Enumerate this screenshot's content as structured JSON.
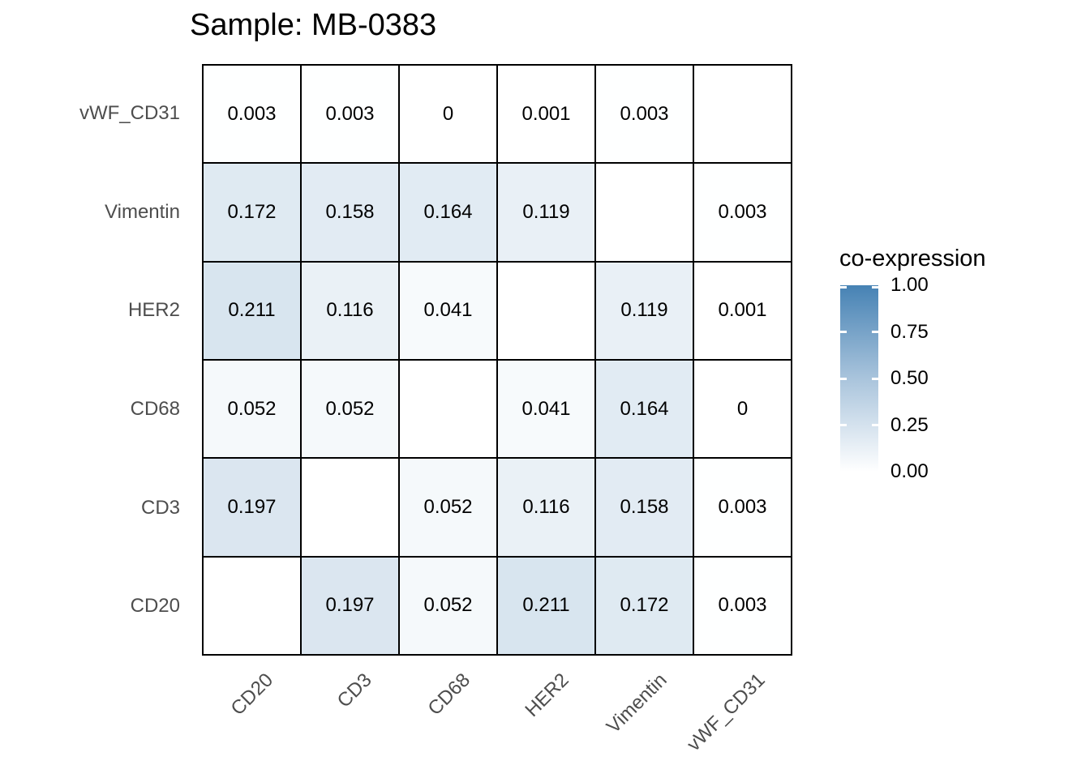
{
  "title": "Sample: MB-0383",
  "legend": {
    "title": "co-expression",
    "tick_labels": [
      "1.00",
      "0.75",
      "0.50",
      "0.25",
      "0.00"
    ],
    "tick_values": [
      1.0,
      0.75,
      0.5,
      0.25,
      0.0
    ],
    "gradient_high_color": "#4682b4",
    "gradient_low_color": "#ffffff"
  },
  "chart_data": {
    "type": "heatmap",
    "title": "Sample: MB-0383",
    "legend_title": "co-expression",
    "x_categories": [
      "CD20",
      "CD3",
      "CD68",
      "HER2",
      "Vimentin",
      "vWF_CD31"
    ],
    "y_categories_top_to_bottom": [
      "vWF_CD31",
      "Vimentin",
      "HER2",
      "CD68",
      "CD3",
      "CD20"
    ],
    "colorscale": {
      "low": "#ffffff",
      "high": "#4682b4",
      "domain": [
        0,
        1
      ]
    },
    "grid": true,
    "legend_position": "right",
    "rows": [
      {
        "y": "vWF_CD31",
        "values": [
          0.003,
          0.003,
          0,
          0.001,
          0.003,
          null
        ],
        "labels": [
          "0.003",
          "0.003",
          "0",
          "0.001",
          "0.003",
          ""
        ]
      },
      {
        "y": "Vimentin",
        "values": [
          0.172,
          0.158,
          0.164,
          0.119,
          null,
          0.003
        ],
        "labels": [
          "0.172",
          "0.158",
          "0.164",
          "0.119",
          "",
          "0.003"
        ]
      },
      {
        "y": "HER2",
        "values": [
          0.211,
          0.116,
          0.041,
          null,
          0.119,
          0.001
        ],
        "labels": [
          "0.211",
          "0.116",
          "0.041",
          "",
          "0.119",
          "0.001"
        ]
      },
      {
        "y": "CD68",
        "values": [
          0.052,
          0.052,
          null,
          0.041,
          0.164,
          0
        ],
        "labels": [
          "0.052",
          "0.052",
          "",
          "0.041",
          "0.164",
          "0"
        ]
      },
      {
        "y": "CD3",
        "values": [
          0.197,
          null,
          0.052,
          0.116,
          0.158,
          0.003
        ],
        "labels": [
          "0.197",
          "",
          "0.052",
          "0.116",
          "0.158",
          "0.003"
        ]
      },
      {
        "y": "CD20",
        "values": [
          null,
          0.197,
          0.052,
          0.211,
          0.172,
          0.003
        ],
        "labels": [
          "",
          "0.197",
          "0.052",
          "0.211",
          "0.172",
          "0.003"
        ]
      }
    ]
  },
  "colors": {
    "axis_text": "#4d4d4d",
    "cell_border": "#000000",
    "cell_text": "#000000",
    "background": "#ffffff"
  }
}
